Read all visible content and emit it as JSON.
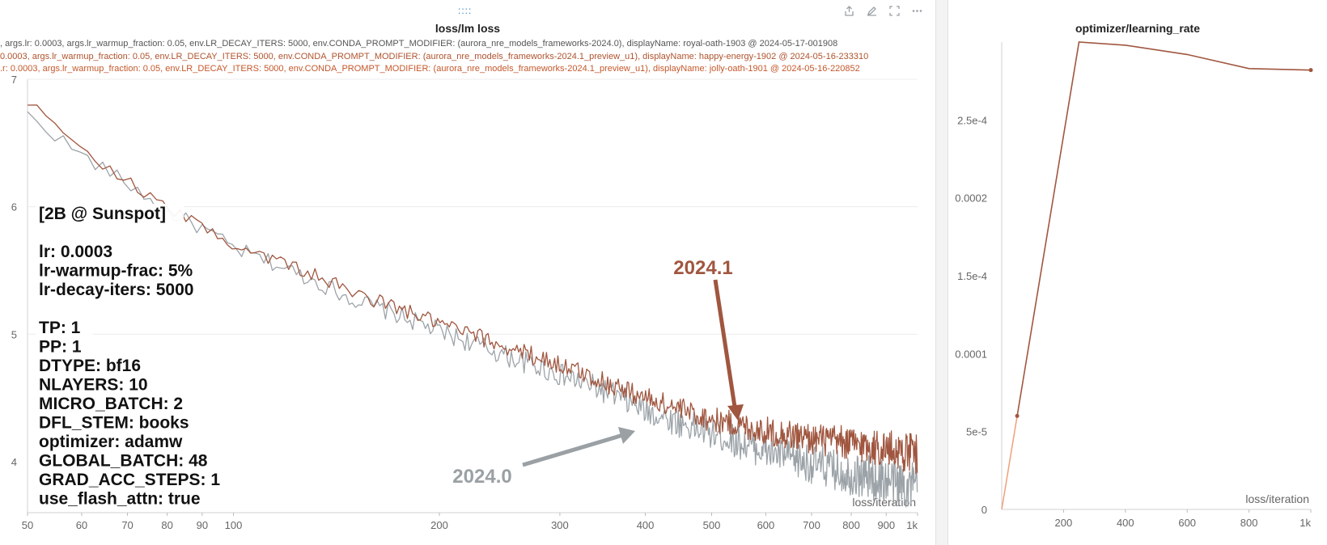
{
  "left": {
    "drag_handle": "::::",
    "title": "loss/lm loss",
    "legend": [
      {
        "text": ", args.lr: 0.0003, args.lr_warmup_fraction: 0.05, env.LR_DECAY_ITERS: 5000, env.CONDA_PROMPT_MODIFIER: (aurora_nre_models_frameworks-2024.0), displayName: royal-oath-1903 @ 2024-05-17-001908",
        "color": "#555555"
      },
      {
        "text": "0.0003, args.lr_warmup_fraction: 0.05, env.LR_DECAY_ITERS: 5000, env.CONDA_PROMPT_MODIFIER: (aurora_nre_models_frameworks-2024.1_preview_u1), displayName: happy-energy-1902 @ 2024-05-16-233310",
        "color": "#b0532e"
      },
      {
        "text": ".r: 0.0003, args.lr_warmup_fraction: 0.05, env.LR_DECAY_ITERS: 5000, env.CONDA_PROMPT_MODIFIER: (aurora_nre_models_frameworks-2024.1_preview_u1), displayName: jolly-oath-1901 @ 2024-05-16-220852",
        "color": "#c4582b"
      }
    ],
    "info_lines": [
      "[2B @ Sunspot]",
      "",
      "lr: 0.0003",
      "lr-warmup-frac: 5%",
      "lr-decay-iters: 5000",
      "",
      "TP: 1",
      "PP: 1",
      "DTYPE: bf16",
      "NLAYERS: 10",
      "MICRO_BATCH: 2",
      "DFL_STEM: books",
      "optimizer: adamw",
      "GLOBAL_BATCH: 48",
      "GRAD_ACC_STEPS: 1",
      "use_flash_attn: true"
    ],
    "annotations": {
      "a2024_1": "2024.1",
      "a2024_0": "2024.0"
    }
  },
  "right": {
    "title": "optimizer/learning_rate"
  },
  "colors": {
    "series_2024_1": "#a0563f",
    "series_2024_0": "#9ca3a8",
    "lr_warmup": "#f0a07a",
    "lr_line": "#a0563f"
  },
  "chart_data": [
    {
      "type": "line",
      "title": "loss/lm loss",
      "xlabel": "loss/iteration",
      "ylabel": "",
      "xscale": "log",
      "xlim": [
        50,
        1000
      ],
      "ylim": [
        3.6,
        7.0
      ],
      "xticks": [
        50,
        60,
        70,
        80,
        90,
        100,
        200,
        300,
        400,
        500,
        600,
        700,
        800,
        900,
        1000
      ],
      "xtick_labels": [
        "50",
        "60",
        "70",
        "80",
        "90",
        "100",
        "200",
        "300",
        "400",
        "500",
        "600",
        "700",
        "800",
        "900",
        "1k"
      ],
      "yticks": [
        4,
        5,
        6,
        7
      ],
      "ytick_labels": [
        "4",
        "5",
        "6",
        "7"
      ],
      "grid": true,
      "series": [
        {
          "name": "2024.1",
          "color": "#a0563f",
          "x": [
            50,
            60,
            70,
            80,
            90,
            100,
            150,
            200,
            250,
            300,
            350,
            400,
            450,
            500,
            600,
            700,
            800,
            900,
            1000
          ],
          "y": [
            6.82,
            6.45,
            6.2,
            5.98,
            5.85,
            5.7,
            5.32,
            5.08,
            4.9,
            4.76,
            4.62,
            4.5,
            4.41,
            4.33,
            4.24,
            4.18,
            4.14,
            4.1,
            4.06
          ]
        },
        {
          "name": "2024.0",
          "color": "#9ca3a8",
          "x": [
            50,
            60,
            70,
            80,
            90,
            100,
            150,
            200,
            250,
            300,
            350,
            400,
            450,
            500,
            600,
            700,
            800,
            900,
            1000
          ],
          "y": [
            6.72,
            6.4,
            6.18,
            5.96,
            5.83,
            5.67,
            5.27,
            5.02,
            4.83,
            4.68,
            4.55,
            4.4,
            4.3,
            4.22,
            4.08,
            3.98,
            3.9,
            3.85,
            3.8
          ]
        }
      ]
    },
    {
      "type": "line",
      "title": "optimizer/learning_rate",
      "xlabel": "loss/iteration",
      "xscale": "linear",
      "xlim": [
        0,
        1000
      ],
      "ylim": [
        0,
        0.0003
      ],
      "xticks": [
        200,
        400,
        600,
        800,
        1000
      ],
      "xtick_labels": [
        "200",
        "400",
        "600",
        "800",
        "1k"
      ],
      "yticks": [
        0,
        5e-05,
        0.0001,
        0.00015,
        0.0002,
        0.00025
      ],
      "ytick_labels": [
        "0",
        "5e-5",
        "0.0001",
        "1.5e-4",
        "0.0002",
        "2.5e-4"
      ],
      "grid": false,
      "series": [
        {
          "name": "learning_rate",
          "color": "#a0563f",
          "x": [
            0,
            50,
            250,
            400,
            600,
            800,
            1000
          ],
          "y": [
            0,
            6e-05,
            0.0003,
            0.000298,
            0.000292,
            0.000283,
            0.000282
          ]
        }
      ]
    }
  ]
}
